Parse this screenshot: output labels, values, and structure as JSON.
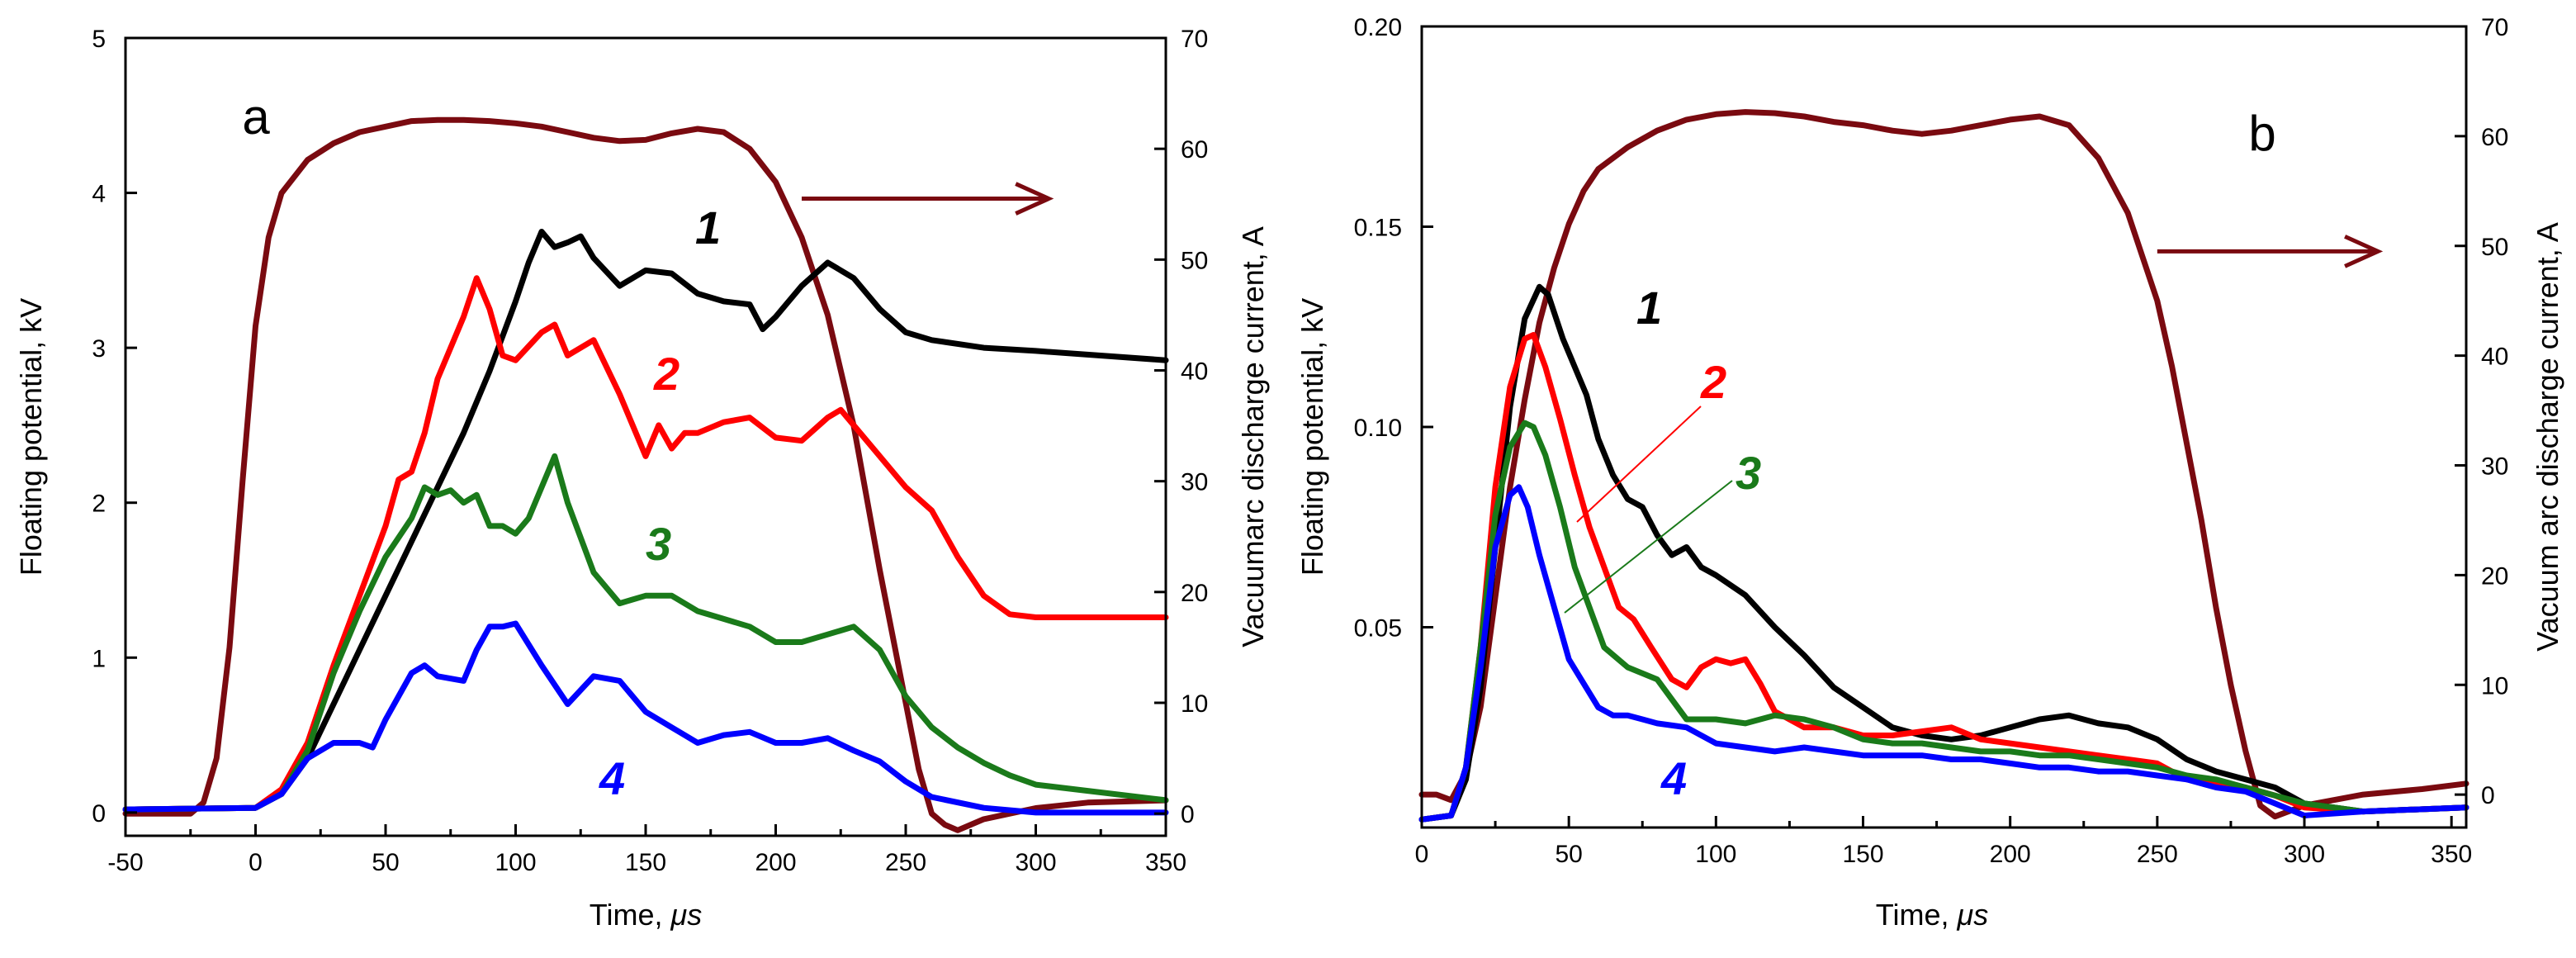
{
  "chart_data": [
    {
      "panel": "a",
      "type": "line",
      "panel_label": "a",
      "xlabel": "Time,",
      "xlabel_unit": "μs",
      "ylabel_left": "Floating potential, kV",
      "ylabel_right": "Vacuumarc discharge current, A",
      "xlim": [
        -50,
        350
      ],
      "ylim_left": [
        -0.15,
        5
      ],
      "ylim_right": [
        -2,
        70
      ],
      "x_ticks": [
        -50,
        0,
        50,
        100,
        150,
        200,
        250,
        300,
        350
      ],
      "y_ticks_left": [
        0,
        1,
        2,
        3,
        4,
        5
      ],
      "y_ticks_right": [
        0,
        10,
        20,
        30,
        40,
        50,
        60,
        70
      ],
      "arrow": {
        "from": [
          210,
          55.5
        ],
        "to": [
          305,
          55.5
        ],
        "axis": "right",
        "color": "#7a0a10"
      },
      "series": [
        {
          "name": "current",
          "axis": "right",
          "color": "#7a0a10",
          "x": [
            -50,
            -25,
            -20,
            -15,
            -10,
            -5,
            0,
            5,
            10,
            20,
            30,
            40,
            50,
            60,
            70,
            80,
            90,
            100,
            110,
            120,
            130,
            140,
            150,
            160,
            170,
            180,
            190,
            200,
            210,
            220,
            230,
            240,
            250,
            255,
            260,
            265,
            270,
            280,
            290,
            300,
            320,
            350
          ],
          "y": [
            0,
            0,
            1,
            5,
            15,
            30,
            44,
            52,
            56,
            59,
            60.5,
            61.5,
            62,
            62.5,
            62.6,
            62.6,
            62.5,
            62.3,
            62,
            61.5,
            61,
            60.7,
            60.8,
            61.4,
            61.8,
            61.5,
            60,
            57,
            52,
            45,
            35,
            22,
            10,
            4,
            0,
            -1,
            -1.5,
            -0.5,
            0,
            0.5,
            1,
            1.2
          ]
        },
        {
          "name": "1",
          "axis": "left",
          "color": "#000000",
          "label": "1",
          "x": [
            -50,
            0,
            10,
            20,
            30,
            40,
            50,
            60,
            70,
            80,
            90,
            100,
            105,
            110,
            115,
            120,
            125,
            130,
            140,
            150,
            160,
            170,
            180,
            190,
            195,
            200,
            210,
            220,
            230,
            240,
            250,
            260,
            280,
            300,
            350
          ],
          "y": [
            0.02,
            0.03,
            0.12,
            0.35,
            0.7,
            1.05,
            1.4,
            1.75,
            2.1,
            2.45,
            2.85,
            3.3,
            3.55,
            3.75,
            3.65,
            3.68,
            3.72,
            3.58,
            3.4,
            3.5,
            3.48,
            3.35,
            3.3,
            3.28,
            3.12,
            3.2,
            3.4,
            3.55,
            3.45,
            3.25,
            3.1,
            3.05,
            3.0,
            2.98,
            2.92
          ]
        },
        {
          "name": "2",
          "axis": "left",
          "color": "#ff0000",
          "label": "2",
          "x": [
            -50,
            0,
            10,
            20,
            30,
            40,
            50,
            55,
            60,
            65,
            70,
            80,
            85,
            90,
            95,
            100,
            110,
            115,
            120,
            130,
            140,
            150,
            155,
            160,
            165,
            170,
            180,
            190,
            200,
            210,
            220,
            225,
            230,
            240,
            250,
            260,
            270,
            280,
            290,
            300,
            350
          ],
          "y": [
            0.02,
            0.03,
            0.15,
            0.45,
            0.95,
            1.4,
            1.85,
            2.15,
            2.2,
            2.45,
            2.8,
            3.2,
            3.45,
            3.25,
            2.95,
            2.92,
            3.1,
            3.15,
            2.95,
            3.05,
            2.7,
            2.3,
            2.5,
            2.35,
            2.45,
            2.45,
            2.52,
            2.55,
            2.42,
            2.4,
            2.55,
            2.6,
            2.5,
            2.3,
            2.1,
            1.95,
            1.65,
            1.4,
            1.28,
            1.26,
            1.26
          ]
        },
        {
          "name": "3",
          "axis": "left",
          "color": "#1a7a1a",
          "label": "3",
          "x": [
            -50,
            0,
            10,
            20,
            30,
            40,
            50,
            60,
            65,
            70,
            75,
            80,
            85,
            90,
            95,
            100,
            105,
            110,
            115,
            120,
            130,
            140,
            150,
            160,
            170,
            180,
            190,
            200,
            210,
            220,
            230,
            240,
            250,
            260,
            270,
            280,
            290,
            300,
            350
          ],
          "y": [
            0.02,
            0.03,
            0.12,
            0.4,
            0.9,
            1.3,
            1.65,
            1.9,
            2.1,
            2.05,
            2.08,
            2.0,
            2.05,
            1.85,
            1.85,
            1.8,
            1.9,
            2.1,
            2.3,
            2.0,
            1.55,
            1.35,
            1.4,
            1.4,
            1.3,
            1.25,
            1.2,
            1.1,
            1.1,
            1.15,
            1.2,
            1.05,
            0.75,
            0.55,
            0.42,
            0.32,
            0.24,
            0.18,
            0.08
          ]
        },
        {
          "name": "4",
          "axis": "left",
          "color": "#0000ff",
          "label": "4",
          "x": [
            -50,
            0,
            10,
            20,
            30,
            40,
            45,
            50,
            60,
            65,
            70,
            80,
            85,
            90,
            95,
            100,
            110,
            120,
            130,
            140,
            150,
            160,
            170,
            180,
            190,
            200,
            210,
            220,
            230,
            240,
            250,
            260,
            280,
            300,
            350
          ],
          "y": [
            0.02,
            0.03,
            0.12,
            0.35,
            0.45,
            0.45,
            0.42,
            0.6,
            0.9,
            0.95,
            0.88,
            0.85,
            1.05,
            1.2,
            1.2,
            1.22,
            0.95,
            0.7,
            0.88,
            0.85,
            0.65,
            0.55,
            0.45,
            0.5,
            0.52,
            0.45,
            0.45,
            0.48,
            0.4,
            0.33,
            0.2,
            0.1,
            0.03,
            0.0,
            0.0
          ]
        }
      ]
    },
    {
      "panel": "b",
      "type": "line",
      "panel_label": "b",
      "xlabel": "Time,",
      "xlabel_unit": "μs",
      "ylabel_left": "Floating potential, kV",
      "ylabel_right": "Vacuum arc discharge current, A",
      "xlim": [
        0,
        355
      ],
      "ylim_left": [
        0,
        0.2
      ],
      "ylim_right": [
        -3,
        70
      ],
      "x_ticks": [
        0,
        50,
        100,
        150,
        200,
        250,
        300,
        350
      ],
      "y_ticks_left": [
        0.05,
        0.1,
        0.15,
        0.2
      ],
      "y_tick_labels_left": [
        "0.05",
        "0.10",
        "0.15",
        "0.20"
      ],
      "y_ticks_right": [
        0,
        10,
        20,
        30,
        40,
        50,
        60,
        70
      ],
      "arrow": {
        "from": [
          250,
          49.5
        ],
        "to": [
          325,
          49.5
        ],
        "axis": "right",
        "color": "#7a0a10"
      },
      "series": [
        {
          "name": "current",
          "axis": "right",
          "color": "#7a0a10",
          "x": [
            0,
            5,
            10,
            15,
            20,
            25,
            30,
            35,
            40,
            45,
            50,
            55,
            60,
            70,
            80,
            90,
            100,
            110,
            120,
            130,
            140,
            150,
            160,
            170,
            180,
            190,
            200,
            210,
            220,
            230,
            240,
            250,
            255,
            260,
            265,
            270,
            275,
            280,
            285,
            290,
            300,
            320,
            340,
            355
          ],
          "y": [
            0,
            0,
            -0.5,
            2,
            8,
            18,
            28,
            36,
            43,
            48,
            52,
            55,
            57,
            59,
            60.5,
            61.5,
            62,
            62.2,
            62.1,
            61.8,
            61.3,
            61,
            60.5,
            60.2,
            60.5,
            61,
            61.5,
            61.8,
            61,
            58,
            53,
            45,
            39,
            32,
            25,
            17,
            10,
            4,
            -1,
            -2,
            -1,
            0,
            0.5,
            1
          ]
        },
        {
          "name": "1",
          "axis": "left",
          "color": "#000000",
          "label": "1",
          "x": [
            0,
            10,
            15,
            20,
            25,
            30,
            35,
            40,
            43,
            48,
            52,
            56,
            60,
            65,
            70,
            75,
            80,
            85,
            90,
            95,
            100,
            110,
            120,
            130,
            140,
            150,
            160,
            170,
            180,
            190,
            200,
            210,
            220,
            230,
            240,
            250,
            260,
            270,
            280,
            290,
            300,
            320,
            355
          ],
          "y": [
            0.002,
            0.003,
            0.012,
            0.035,
            0.07,
            0.105,
            0.127,
            0.135,
            0.133,
            0.122,
            0.115,
            0.108,
            0.097,
            0.088,
            0.082,
            0.08,
            0.073,
            0.068,
            0.07,
            0.065,
            0.063,
            0.058,
            0.05,
            0.043,
            0.035,
            0.03,
            0.025,
            0.023,
            0.022,
            0.023,
            0.025,
            0.027,
            0.028,
            0.026,
            0.025,
            0.022,
            0.017,
            0.014,
            0.012,
            0.01,
            0.006,
            0.004,
            0.005
          ]
        },
        {
          "name": "2",
          "axis": "left",
          "color": "#ff0000",
          "label": "2",
          "x": [
            0,
            10,
            15,
            20,
            25,
            30,
            35,
            38,
            42,
            47,
            52,
            57,
            62,
            67,
            72,
            78,
            85,
            90,
            95,
            100,
            105,
            110,
            115,
            120,
            130,
            140,
            150,
            160,
            170,
            180,
            190,
            200,
            210,
            220,
            230,
            240,
            250,
            260,
            270,
            280,
            290,
            300,
            320,
            355
          ],
          "y": [
            0.002,
            0.003,
            0.015,
            0.045,
            0.085,
            0.11,
            0.122,
            0.123,
            0.115,
            0.102,
            0.088,
            0.075,
            0.065,
            0.055,
            0.052,
            0.045,
            0.037,
            0.035,
            0.04,
            0.042,
            0.041,
            0.042,
            0.036,
            0.029,
            0.025,
            0.025,
            0.023,
            0.023,
            0.024,
            0.025,
            0.022,
            0.021,
            0.02,
            0.019,
            0.018,
            0.017,
            0.016,
            0.012,
            0.011,
            0.01,
            0.008,
            0.005,
            0.004,
            0.005
          ]
        },
        {
          "name": "3",
          "axis": "left",
          "color": "#1a7a1a",
          "label": "3",
          "x": [
            0,
            10,
            15,
            20,
            25,
            30,
            35,
            38,
            42,
            47,
            52,
            57,
            62,
            70,
            80,
            90,
            100,
            110,
            120,
            130,
            140,
            150,
            160,
            170,
            180,
            190,
            200,
            210,
            220,
            230,
            240,
            250,
            260,
            270,
            280,
            290,
            300,
            320,
            355
          ],
          "y": [
            0.002,
            0.003,
            0.015,
            0.045,
            0.078,
            0.095,
            0.101,
            0.1,
            0.093,
            0.08,
            0.065,
            0.055,
            0.045,
            0.04,
            0.037,
            0.027,
            0.027,
            0.026,
            0.028,
            0.027,
            0.025,
            0.022,
            0.021,
            0.021,
            0.02,
            0.019,
            0.019,
            0.018,
            0.018,
            0.017,
            0.016,
            0.015,
            0.013,
            0.012,
            0.01,
            0.008,
            0.006,
            0.004,
            0.005
          ]
        },
        {
          "name": "4",
          "axis": "left",
          "color": "#0000ff",
          "label": "4",
          "x": [
            0,
            10,
            15,
            20,
            25,
            30,
            33,
            36,
            40,
            45,
            50,
            55,
            60,
            65,
            70,
            75,
            80,
            90,
            100,
            110,
            120,
            130,
            140,
            150,
            160,
            170,
            180,
            190,
            200,
            210,
            220,
            230,
            240,
            250,
            260,
            270,
            280,
            290,
            300,
            320,
            355
          ],
          "y": [
            0.002,
            0.003,
            0.015,
            0.04,
            0.07,
            0.083,
            0.085,
            0.08,
            0.068,
            0.055,
            0.042,
            0.036,
            0.03,
            0.028,
            0.028,
            0.027,
            0.026,
            0.025,
            0.021,
            0.02,
            0.019,
            0.02,
            0.019,
            0.018,
            0.018,
            0.018,
            0.017,
            0.017,
            0.016,
            0.015,
            0.015,
            0.014,
            0.014,
            0.013,
            0.012,
            0.01,
            0.009,
            0.006,
            0.003,
            0.004,
            0.005
          ]
        }
      ]
    }
  ]
}
